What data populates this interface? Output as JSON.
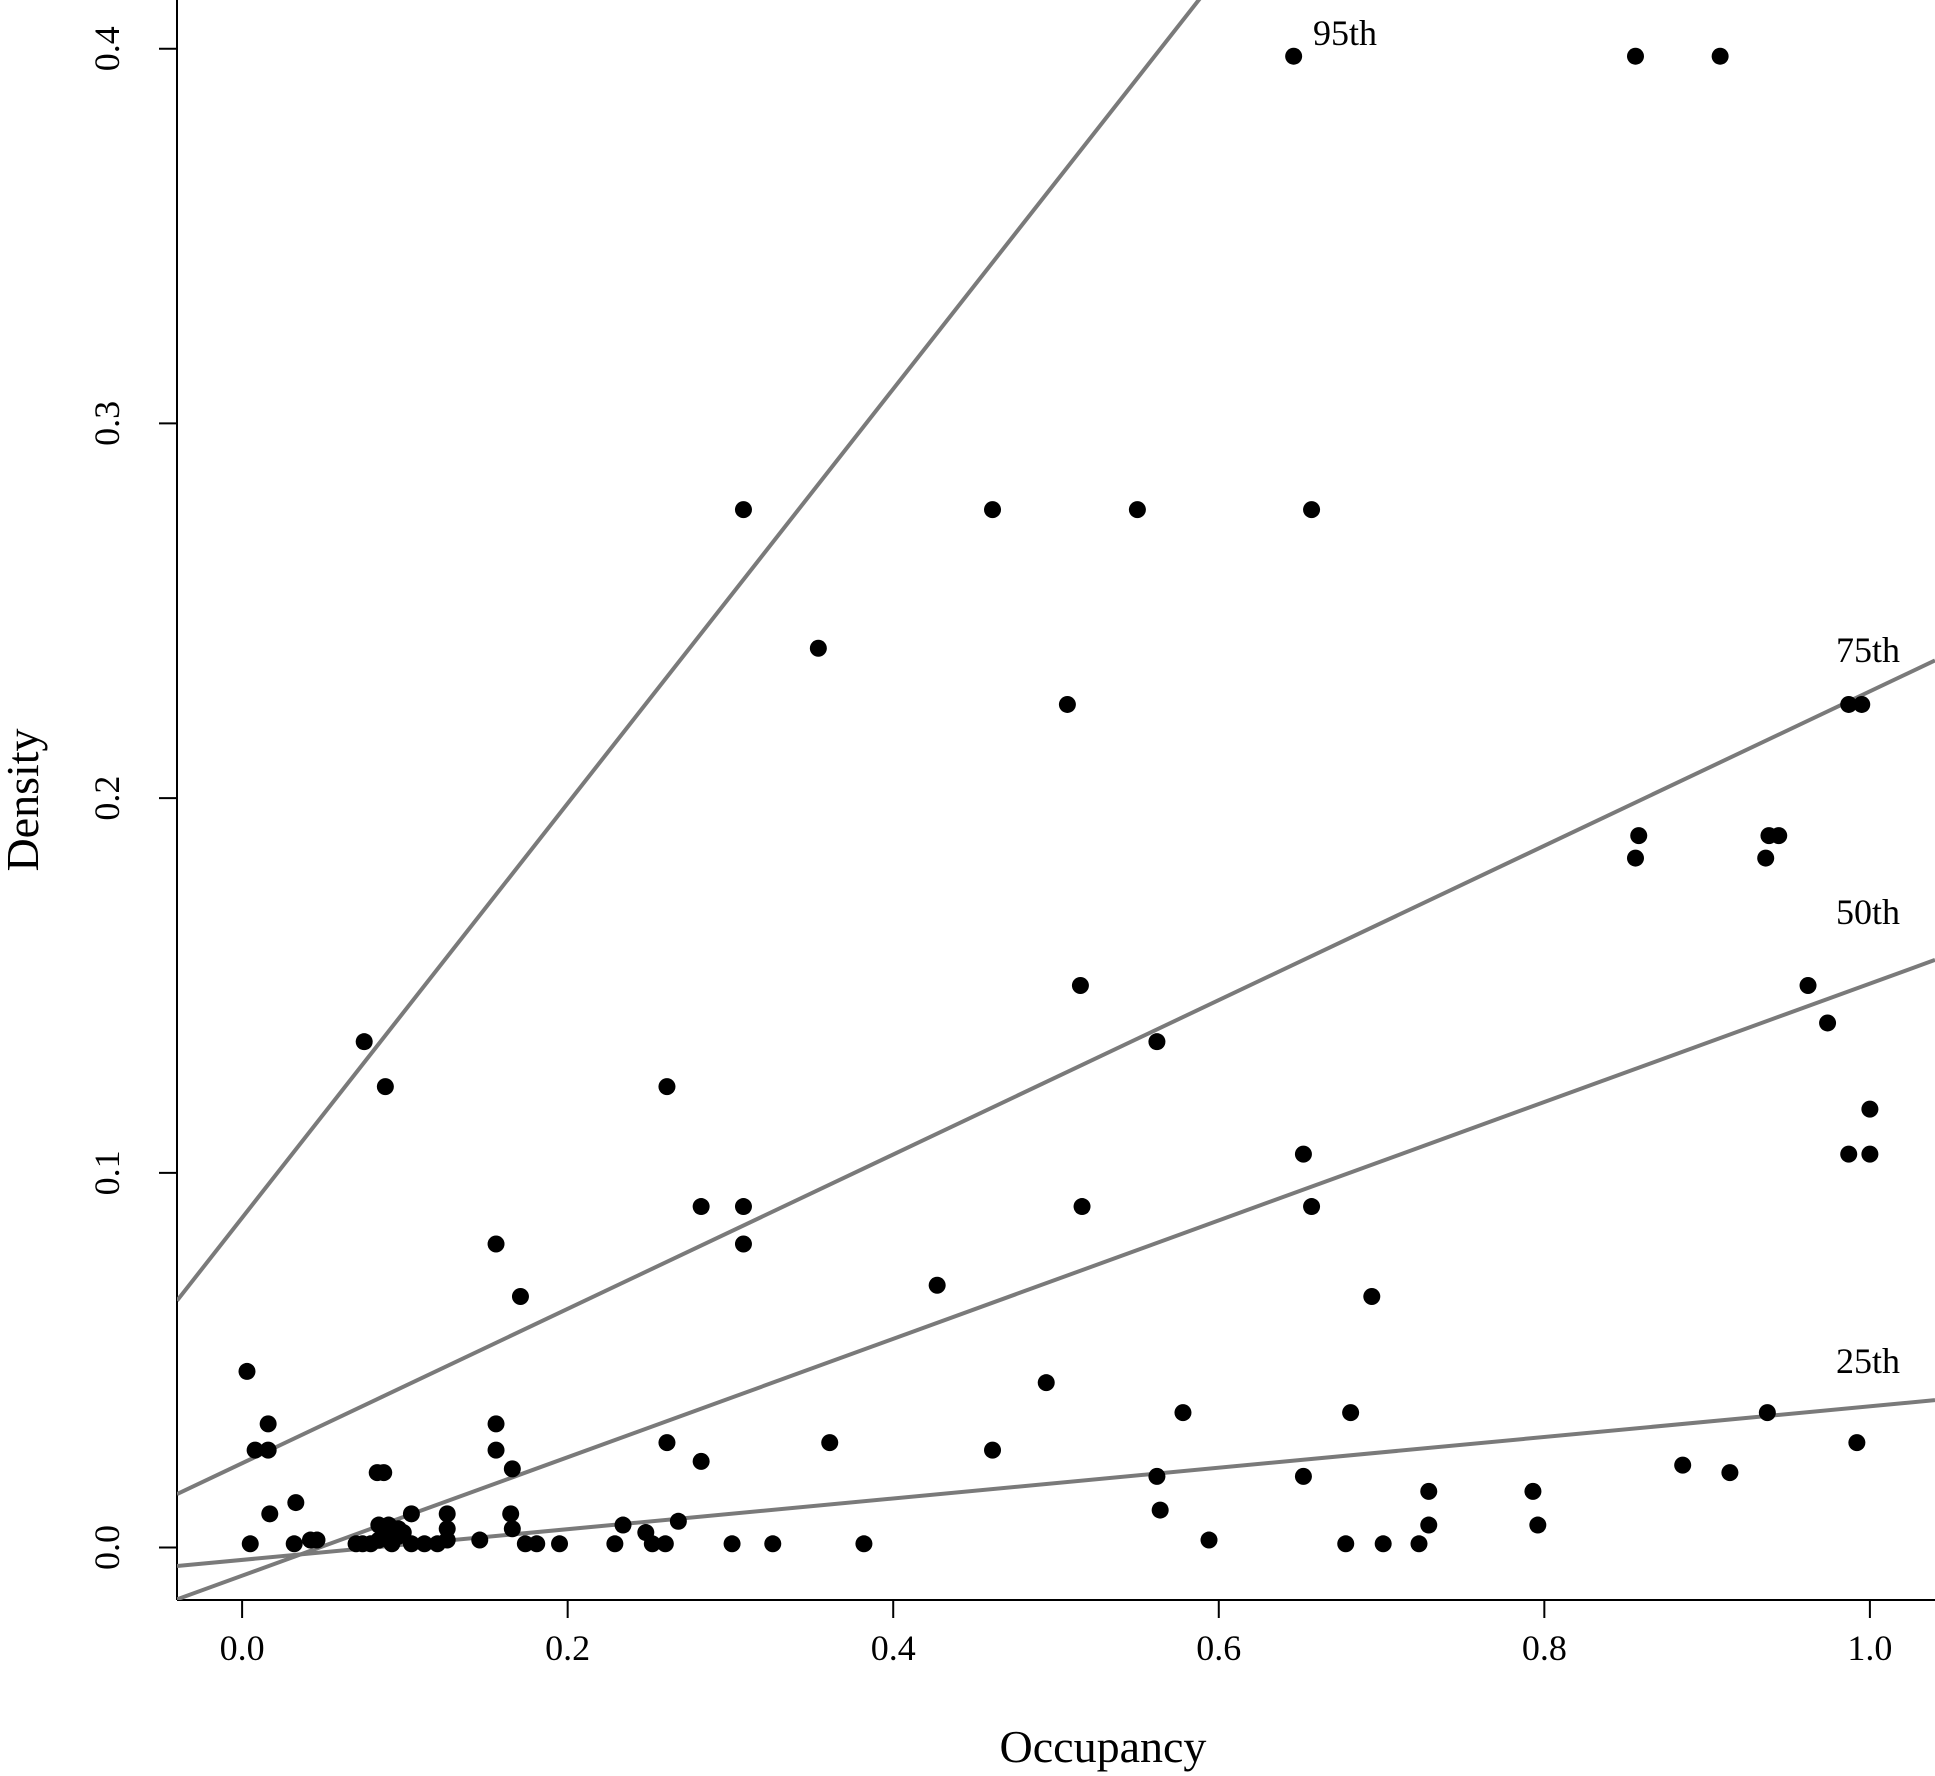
{
  "chart_data": {
    "type": "scatter",
    "xlabel": "Occupancy",
    "ylabel": "Density",
    "xlim": [
      -0.04,
      1.04
    ],
    "ylim": [
      -0.014,
      0.413
    ],
    "xticks": [
      0.0,
      0.2,
      0.4,
      0.6,
      0.8,
      1.0
    ],
    "xtick_labels": [
      "0.0",
      "0.2",
      "0.4",
      "0.6",
      "0.8",
      "1.0"
    ],
    "yticks": [
      0.0,
      0.1,
      0.2,
      0.3,
      0.4
    ],
    "ytick_labels": [
      "0.0",
      "0.1",
      "0.2",
      "0.3",
      "0.4"
    ],
    "grid": false,
    "point_color": "#000000",
    "line_color": "#7a7a7a",
    "points": [
      [
        0.003,
        0.047
      ],
      [
        0.008,
        0.026
      ],
      [
        0.016,
        0.033
      ],
      [
        0.016,
        0.026
      ],
      [
        0.017,
        0.009
      ],
      [
        0.005,
        0.001
      ],
      [
        0.033,
        0.012
      ],
      [
        0.032,
        0.001
      ],
      [
        0.042,
        0.002
      ],
      [
        0.046,
        0.002
      ],
      [
        0.075,
        0.135
      ],
      [
        0.088,
        0.123
      ],
      [
        0.083,
        0.02
      ],
      [
        0.087,
        0.02
      ],
      [
        0.07,
        0.001
      ],
      [
        0.074,
        0.001
      ],
      [
        0.079,
        0.001
      ],
      [
        0.084,
        0.002
      ],
      [
        0.088,
        0.003
      ],
      [
        0.092,
        0.001
      ],
      [
        0.096,
        0.003
      ],
      [
        0.099,
        0.004
      ],
      [
        0.084,
        0.006
      ],
      [
        0.09,
        0.006
      ],
      [
        0.096,
        0.005
      ],
      [
        0.104,
        0.009
      ],
      [
        0.104,
        0.001
      ],
      [
        0.112,
        0.001
      ],
      [
        0.12,
        0.001
      ],
      [
        0.126,
        0.009
      ],
      [
        0.126,
        0.005
      ],
      [
        0.126,
        0.002
      ],
      [
        0.146,
        0.002
      ],
      [
        0.156,
        0.081
      ],
      [
        0.156,
        0.033
      ],
      [
        0.156,
        0.026
      ],
      [
        0.165,
        0.009
      ],
      [
        0.166,
        0.005
      ],
      [
        0.166,
        0.021
      ],
      [
        0.171,
        0.067
      ],
      [
        0.174,
        0.001
      ],
      [
        0.181,
        0.001
      ],
      [
        0.195,
        0.001
      ],
      [
        0.229,
        0.001
      ],
      [
        0.234,
        0.006
      ],
      [
        0.248,
        0.004
      ],
      [
        0.252,
        0.001
      ],
      [
        0.26,
        0.001
      ],
      [
        0.261,
        0.123
      ],
      [
        0.261,
        0.028
      ],
      [
        0.268,
        0.007
      ],
      [
        0.282,
        0.091
      ],
      [
        0.282,
        0.023
      ],
      [
        0.301,
        0.001
      ],
      [
        0.308,
        0.277
      ],
      [
        0.308,
        0.091
      ],
      [
        0.308,
        0.081
      ],
      [
        0.326,
        0.001
      ],
      [
        0.354,
        0.24
      ],
      [
        0.361,
        0.028
      ],
      [
        0.382,
        0.001
      ],
      [
        0.427,
        0.07
      ],
      [
        0.461,
        0.277
      ],
      [
        0.461,
        0.026
      ],
      [
        0.494,
        0.044
      ],
      [
        0.507,
        0.225
      ],
      [
        0.515,
        0.15
      ],
      [
        0.516,
        0.091
      ],
      [
        0.55,
        0.277
      ],
      [
        0.562,
        0.135
      ],
      [
        0.562,
        0.019
      ],
      [
        0.564,
        0.01
      ],
      [
        0.578,
        0.036
      ],
      [
        0.594,
        0.002
      ],
      [
        0.646,
        0.398
      ],
      [
        0.652,
        0.105
      ],
      [
        0.652,
        0.019
      ],
      [
        0.657,
        0.277
      ],
      [
        0.657,
        0.091
      ],
      [
        0.678,
        0.001
      ],
      [
        0.681,
        0.036
      ],
      [
        0.694,
        0.067
      ],
      [
        0.701,
        0.001
      ],
      [
        0.723,
        0.001
      ],
      [
        0.729,
        0.015
      ],
      [
        0.729,
        0.006
      ],
      [
        0.793,
        0.015
      ],
      [
        0.796,
        0.006
      ],
      [
        0.856,
        0.398
      ],
      [
        0.856,
        0.184
      ],
      [
        0.858,
        0.19
      ],
      [
        0.885,
        0.022
      ],
      [
        0.908,
        0.398
      ],
      [
        0.914,
        0.02
      ],
      [
        0.936,
        0.184
      ],
      [
        0.937,
        0.036
      ],
      [
        0.938,
        0.19
      ],
      [
        0.944,
        0.19
      ],
      [
        0.962,
        0.15
      ],
      [
        0.974,
        0.14
      ],
      [
        0.987,
        0.225
      ],
      [
        0.987,
        0.105
      ],
      [
        0.992,
        0.028
      ],
      [
        0.995,
        0.225
      ],
      [
        1.0,
        0.117
      ],
      [
        1.0,
        0.105
      ]
    ],
    "lines": [
      {
        "label": "95th",
        "slope": 0.553,
        "intercept": 0.088
      },
      {
        "label": "75th",
        "slope": 0.206,
        "intercept": 0.0225
      },
      {
        "label": "50th",
        "slope": 0.158,
        "intercept": -0.0075
      },
      {
        "label": "25th",
        "slope": 0.041,
        "intercept": -0.0033
      }
    ]
  }
}
